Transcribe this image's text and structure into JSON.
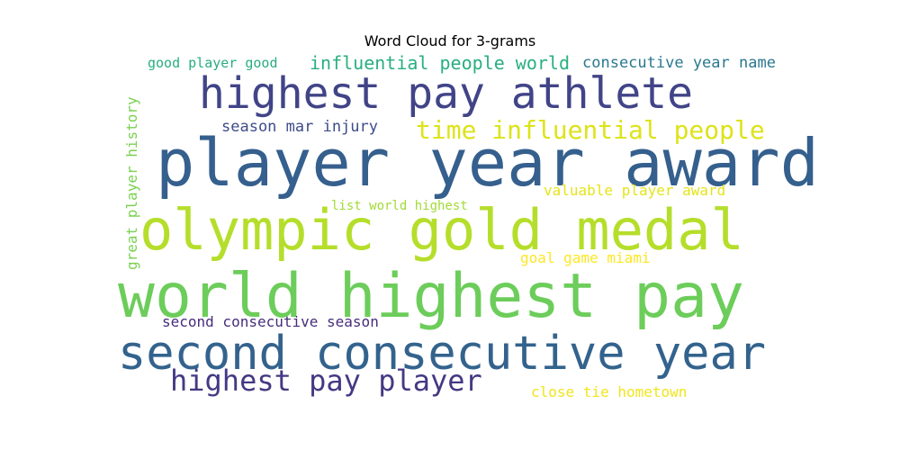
{
  "chart_data": {
    "type": "word_cloud",
    "title": "Word Cloud for 3-grams",
    "words": [
      {
        "text": "player year award",
        "weight": 1.0,
        "color": "#355f8d",
        "orientation": "horizontal"
      },
      {
        "text": "world highest pay",
        "weight": 0.95,
        "color": "#6ccd5a",
        "orientation": "horizontal"
      },
      {
        "text": "olympic gold medal",
        "weight": 0.85,
        "color": "#b5de2b",
        "orientation": "horizontal"
      },
      {
        "text": "second consecutive year",
        "weight": 0.72,
        "color": "#33638d",
        "orientation": "horizontal"
      },
      {
        "text": "highest pay athlete",
        "weight": 0.68,
        "color": "#414487",
        "orientation": "horizontal"
      },
      {
        "text": "highest pay player",
        "weight": 0.45,
        "color": "#443983",
        "orientation": "horizontal"
      },
      {
        "text": "time influential people",
        "weight": 0.4,
        "color": "#dde318",
        "orientation": "horizontal"
      },
      {
        "text": "influential people world",
        "weight": 0.3,
        "color": "#29af7f",
        "orientation": "horizontal"
      },
      {
        "text": "consecutive year name",
        "weight": 0.25,
        "color": "#2a788e",
        "orientation": "horizontal"
      },
      {
        "text": "season mar injury",
        "weight": 0.25,
        "color": "#3e4c8a",
        "orientation": "horizontal"
      },
      {
        "text": "great player history",
        "weight": 0.22,
        "color": "#7ad151",
        "orientation": "vertical"
      },
      {
        "text": "valuable player award",
        "weight": 0.22,
        "color": "#e5e419",
        "orientation": "horizontal"
      },
      {
        "text": "goal game miami",
        "weight": 0.22,
        "color": "#fde725",
        "orientation": "horizontal"
      },
      {
        "text": "second consecutive season",
        "weight": 0.22,
        "color": "#472d7b",
        "orientation": "horizontal"
      },
      {
        "text": "close tie hometown",
        "weight": 0.22,
        "color": "#f1e51d",
        "orientation": "horizontal"
      },
      {
        "text": "good player good",
        "weight": 0.2,
        "color": "#27ad81",
        "orientation": "horizontal"
      },
      {
        "text": "list world highest",
        "weight": 0.18,
        "color": "#a2da37",
        "orientation": "horizontal"
      }
    ]
  }
}
